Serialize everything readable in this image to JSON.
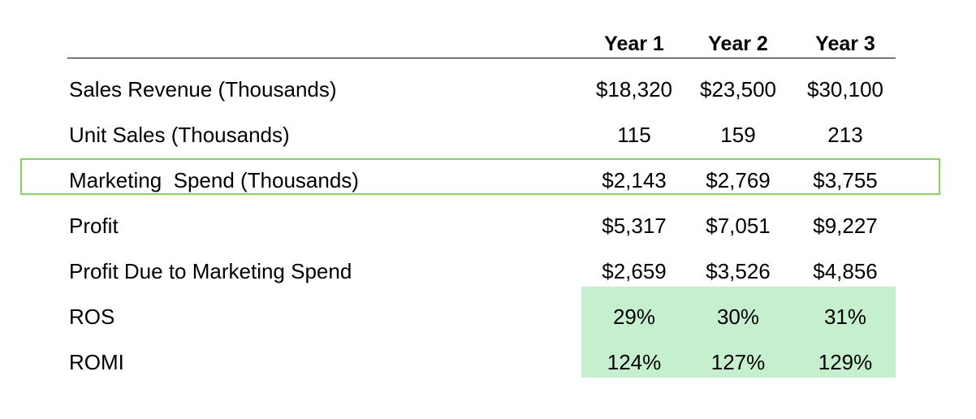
{
  "columns": [
    "Year 1",
    "Year 2",
    "Year 3"
  ],
  "rows": [
    {
      "label": "Sales Revenue (Thousands)",
      "values": [
        "$18,320",
        "$23,500",
        "$30,100"
      ]
    },
    {
      "label": "Unit Sales (Thousands)",
      "values": [
        "115",
        "159",
        "213"
      ]
    },
    {
      "label": "Marketing  Spend (Thousands)",
      "values": [
        "$2,143",
        "$2,769",
        "$3,755"
      ]
    },
    {
      "label": "Profit",
      "values": [
        "$5,317",
        "$7,051",
        "$9,227"
      ]
    },
    {
      "label": "Profit Due to Marketing Spend",
      "values": [
        "$2,659",
        "$3,526",
        "$4,856"
      ]
    },
    {
      "label": "ROS",
      "values": [
        "29%",
        "30%",
        "31%"
      ]
    },
    {
      "label": "ROMI",
      "values": [
        "124%",
        "127%",
        "129%"
      ]
    }
  ],
  "colors": {
    "highlight_border": "#8fce70",
    "highlight_fill": "#c6efcf"
  }
}
